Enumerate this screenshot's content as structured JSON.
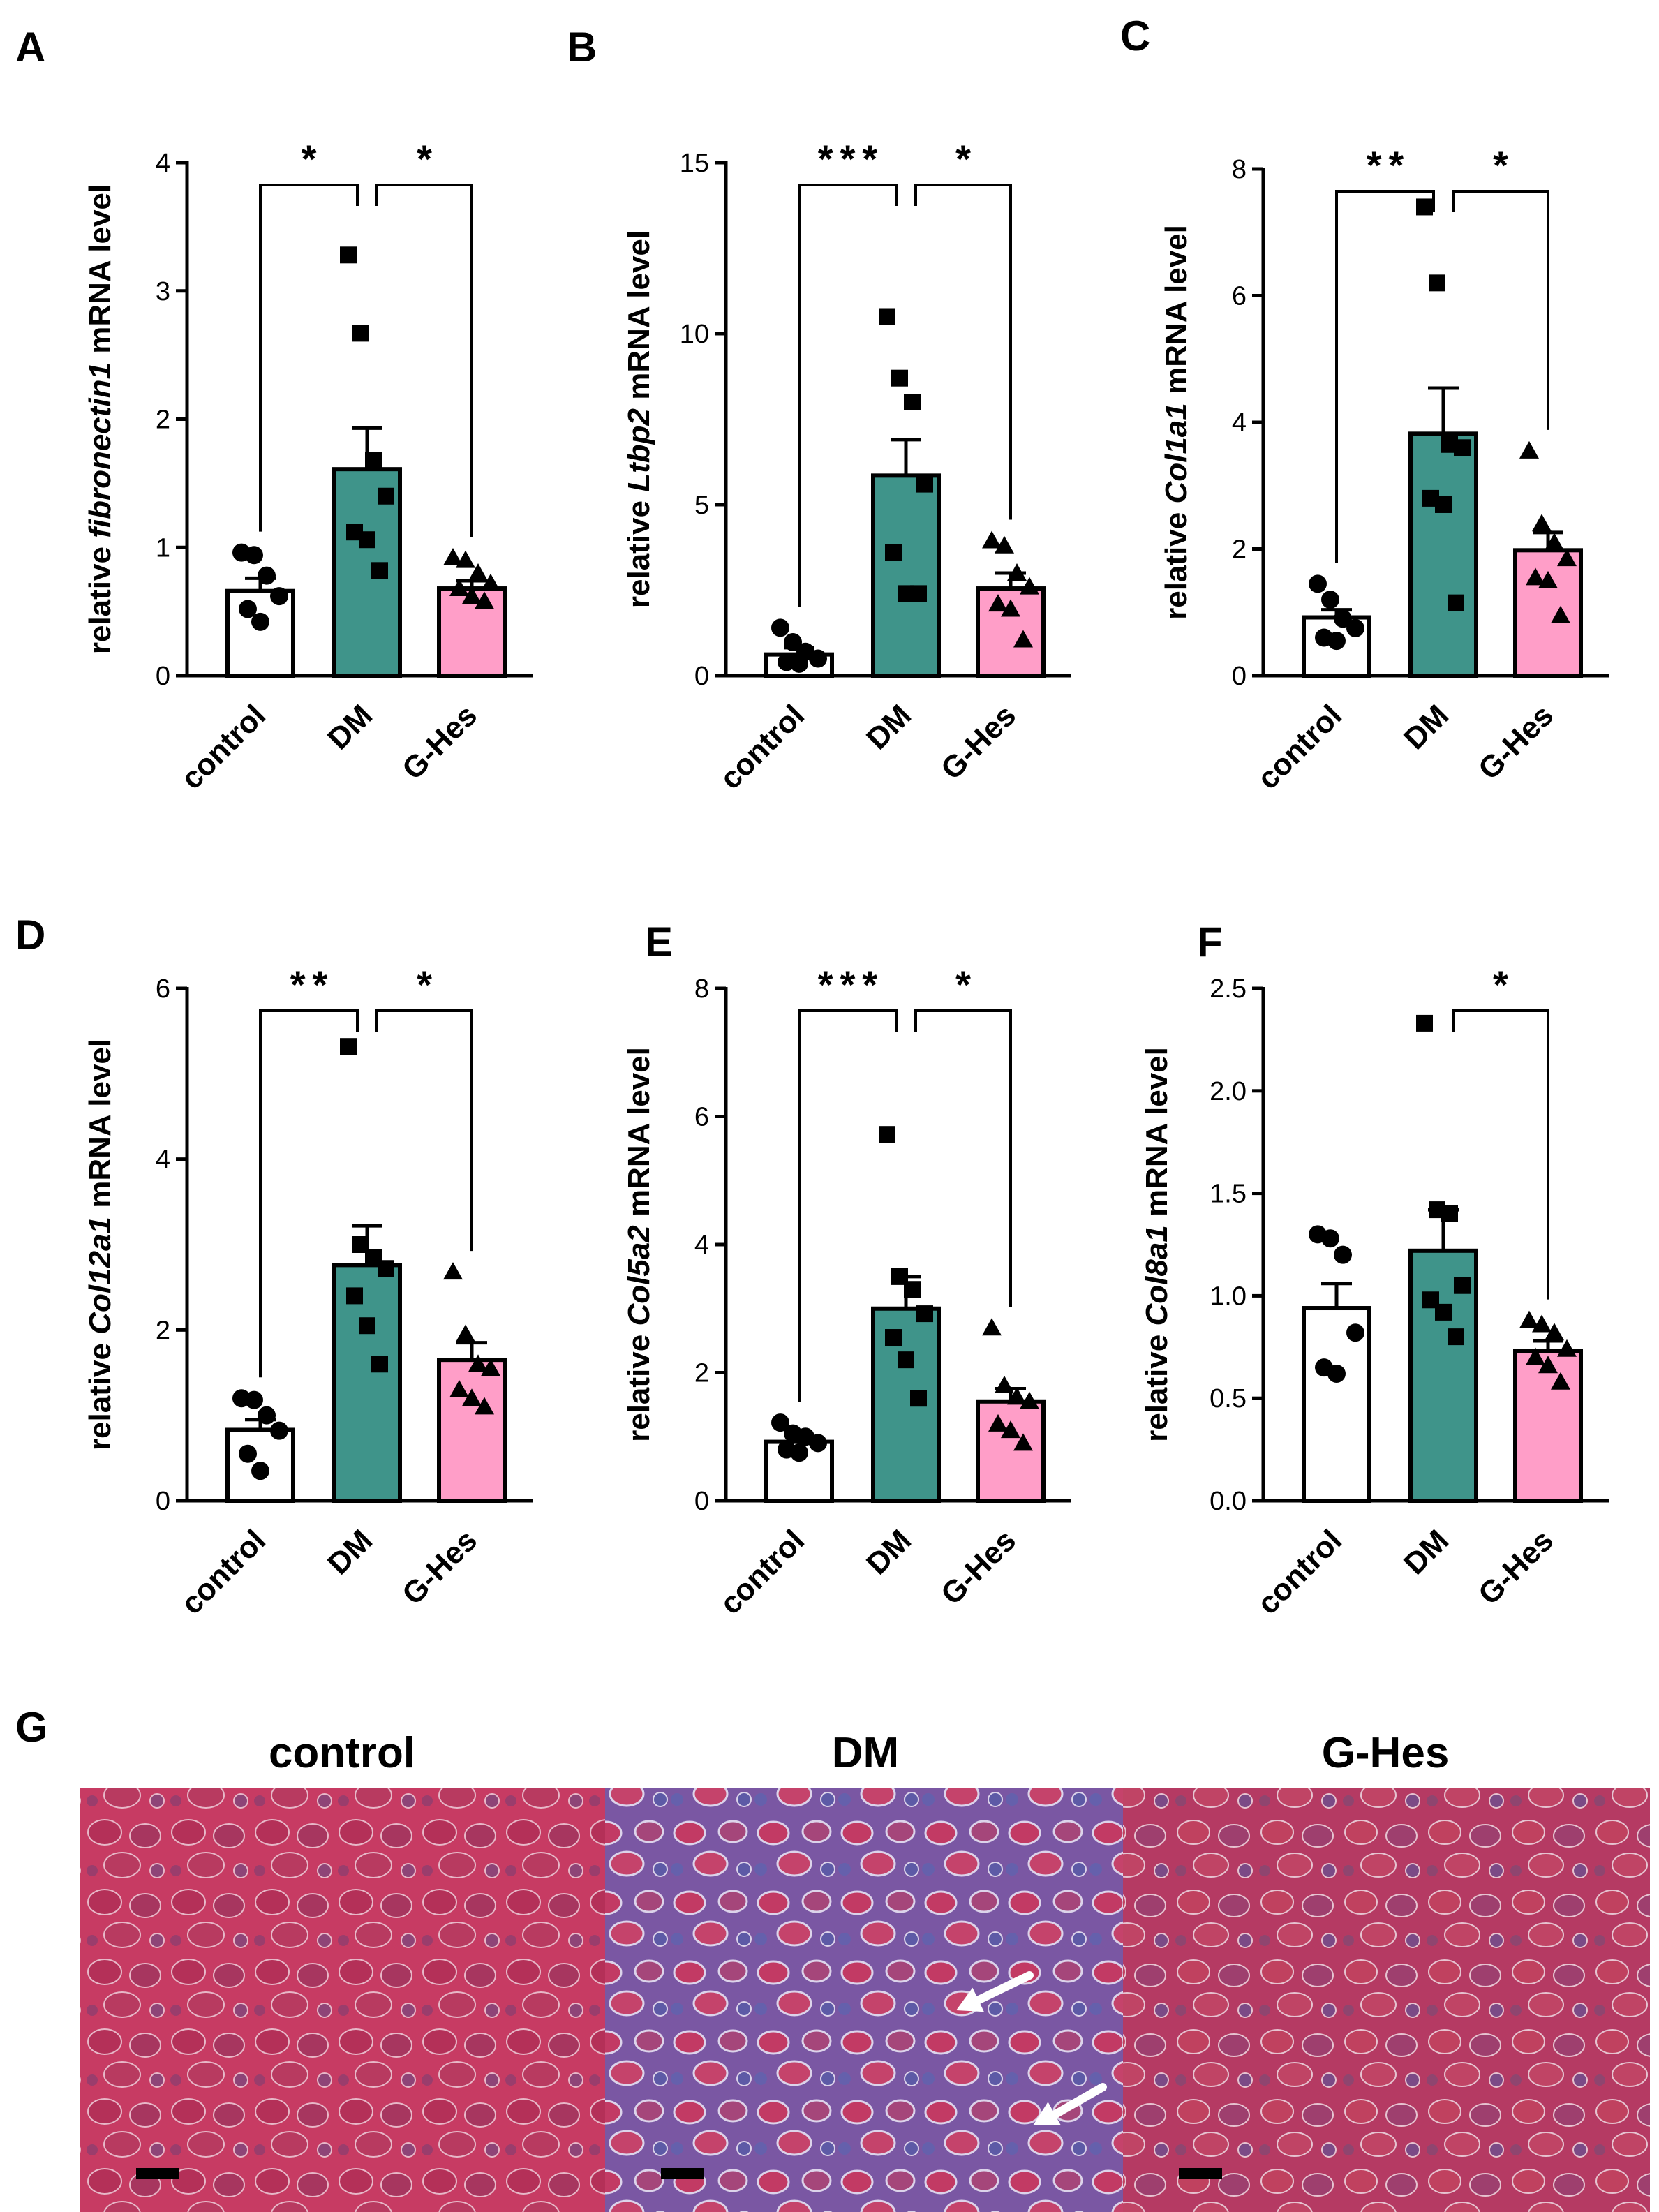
{
  "colors": {
    "control": "#ffffff",
    "DM": "#3f948a",
    "G-Hes": "#ff9ec8",
    "stroke": "#000000",
    "tissue_red": "#c83a62",
    "tissue_blue": "#6e5aa8",
    "arrow": "#ffffff",
    "scale_bar": "#000000"
  },
  "chart_data": [
    {
      "panel": "A",
      "type": "bar",
      "ylabel_prefix": "relative ",
      "ylabel_gene": "fibronectin1",
      "ylabel_suffix": " mRNA level",
      "categories": [
        "control",
        "DM",
        "G-Hes"
      ],
      "ylim": [
        0,
        4
      ],
      "yticks": [
        0,
        1,
        2,
        3,
        4
      ],
      "ytick_labels": [
        "0",
        "1",
        "2",
        "3",
        "4"
      ],
      "means": [
        0.66,
        1.61,
        0.68
      ],
      "sem": [
        0.1,
        0.32,
        0.06
      ],
      "points": [
        [
          0.96,
          0.94,
          0.78,
          0.62,
          0.52,
          0.42
        ],
        [
          3.28,
          2.67,
          1.68,
          1.4,
          1.12,
          1.06,
          0.82
        ],
        [
          0.92,
          0.9,
          0.8,
          0.72,
          0.68,
          0.62,
          0.58
        ]
      ],
      "markers": [
        "circle",
        "square",
        "triangle"
      ],
      "significance": [
        {
          "from": 0,
          "to": 1,
          "label": "*"
        },
        {
          "from": 1,
          "to": 2,
          "label": "*"
        }
      ]
    },
    {
      "panel": "B",
      "type": "bar",
      "ylabel_prefix": "relative ",
      "ylabel_gene": "Ltbp2",
      "ylabel_suffix": " mRNA level",
      "categories": [
        "control",
        "DM",
        "G-Hes"
      ],
      "ylim": [
        0,
        15
      ],
      "yticks": [
        0,
        5,
        10,
        15
      ],
      "ytick_labels": [
        "0",
        "5",
        "10",
        "15"
      ],
      "means": [
        0.62,
        5.85,
        2.55
      ],
      "sem": [
        0.2,
        1.05,
        0.45
      ],
      "points": [
        [
          1.4,
          0.98,
          0.7,
          0.5,
          0.4,
          0.35
        ],
        [
          10.5,
          8.7,
          8.0,
          5.6,
          3.6,
          2.4,
          2.4
        ],
        [
          3.95,
          3.8,
          3.0,
          2.6,
          2.1,
          1.95,
          1.05
        ]
      ],
      "markers": [
        "circle",
        "square",
        "triangle"
      ],
      "significance": [
        {
          "from": 0,
          "to": 1,
          "label": "***"
        },
        {
          "from": 1,
          "to": 2,
          "label": "*"
        }
      ]
    },
    {
      "panel": "C",
      "type": "bar",
      "ylabel_prefix": "relative ",
      "ylabel_gene": "Col1a1",
      "ylabel_suffix": " mRNA level",
      "categories": [
        "control",
        "DM",
        "G-Hes"
      ],
      "ylim": [
        0,
        8
      ],
      "yticks": [
        0,
        2,
        4,
        6,
        8
      ],
      "ytick_labels": [
        "0",
        "2",
        "4",
        "6",
        "8"
      ],
      "means": [
        0.92,
        3.82,
        1.98
      ],
      "sem": [
        0.12,
        0.72,
        0.28
      ],
      "points": [
        [
          1.45,
          1.2,
          0.9,
          0.75,
          0.6,
          0.55
        ],
        [
          7.4,
          6.2,
          3.65,
          3.6,
          2.8,
          2.7,
          1.15
        ],
        [
          3.55,
          2.4,
          2.1,
          1.85,
          1.55,
          1.5,
          0.95
        ]
      ],
      "markers": [
        "circle",
        "square",
        "triangle"
      ],
      "significance": [
        {
          "from": 0,
          "to": 1,
          "label": "**"
        },
        {
          "from": 1,
          "to": 2,
          "label": "*"
        }
      ]
    },
    {
      "panel": "D",
      "type": "bar",
      "ylabel_prefix": "relative ",
      "ylabel_gene": "Col12a1",
      "ylabel_suffix": " mRNA level",
      "categories": [
        "control",
        "DM",
        "G-Hes"
      ],
      "ylim": [
        0,
        6
      ],
      "yticks": [
        0,
        2,
        4,
        6
      ],
      "ytick_labels": [
        "0",
        "2",
        "4",
        "6"
      ],
      "means": [
        0.83,
        2.76,
        1.65
      ],
      "sem": [
        0.12,
        0.46,
        0.2
      ],
      "points": [
        [
          1.2,
          1.18,
          1.0,
          0.82,
          0.55,
          0.35
        ],
        [
          5.32,
          3.0,
          2.85,
          2.72,
          2.4,
          2.05,
          1.6
        ],
        [
          2.68,
          1.95,
          1.6,
          1.55,
          1.3,
          1.2,
          1.1
        ]
      ],
      "markers": [
        "circle",
        "square",
        "triangle"
      ],
      "significance": [
        {
          "from": 0,
          "to": 1,
          "label": "**"
        },
        {
          "from": 1,
          "to": 2,
          "label": "*"
        }
      ]
    },
    {
      "panel": "E",
      "type": "bar",
      "ylabel_prefix": "relative ",
      "ylabel_gene": "Col5a2",
      "ylabel_suffix": " mRNA level",
      "categories": [
        "control",
        "DM",
        "G-Hes"
      ],
      "ylim": [
        0,
        8
      ],
      "yticks": [
        0,
        2,
        4,
        6,
        8
      ],
      "ytick_labels": [
        "0",
        "2",
        "4",
        "6",
        "8"
      ],
      "means": [
        0.92,
        3.0,
        1.55
      ],
      "sem": [
        0.1,
        0.5,
        0.2
      ],
      "points": [
        [
          1.22,
          1.05,
          1.0,
          0.9,
          0.8,
          0.75
        ],
        [
          5.72,
          3.5,
          3.3,
          2.92,
          2.55,
          2.2,
          1.6
        ],
        [
          2.7,
          1.8,
          1.62,
          1.55,
          1.2,
          1.1,
          0.9
        ]
      ],
      "markers": [
        "circle",
        "square",
        "triangle"
      ],
      "significance": [
        {
          "from": 0,
          "to": 1,
          "label": "***"
        },
        {
          "from": 1,
          "to": 2,
          "label": "*"
        }
      ]
    },
    {
      "panel": "F",
      "type": "bar",
      "ylabel_prefix": "relative ",
      "ylabel_gene": "Col8a1",
      "ylabel_suffix": " mRNA level",
      "categories": [
        "control",
        "DM",
        "G-Hes"
      ],
      "ylim": [
        0,
        2.5
      ],
      "yticks": [
        0,
        0.5,
        1.0,
        1.5,
        2.0,
        2.5
      ],
      "ytick_labels": [
        "0.0",
        "0.5",
        "1.0",
        "1.5",
        "2.0",
        "2.5"
      ],
      "means": [
        0.94,
        1.22,
        0.73
      ],
      "sem": [
        0.12,
        0.2,
        0.05
      ],
      "points": [
        [
          1.3,
          1.28,
          1.2,
          0.82,
          0.65,
          0.62
        ],
        [
          2.33,
          1.42,
          1.4,
          1.05,
          0.98,
          0.92,
          0.8
        ],
        [
          0.88,
          0.86,
          0.82,
          0.74,
          0.7,
          0.66,
          0.58
        ]
      ],
      "markers": [
        "circle",
        "square",
        "triangle"
      ],
      "significance": [
        {
          "from": 1,
          "to": 2,
          "label": "*"
        }
      ]
    }
  ],
  "histology": {
    "panel": "G",
    "titles": [
      "control",
      "DM",
      "G-Hes"
    ],
    "arrows_per_image": [
      0,
      2,
      0
    ]
  }
}
